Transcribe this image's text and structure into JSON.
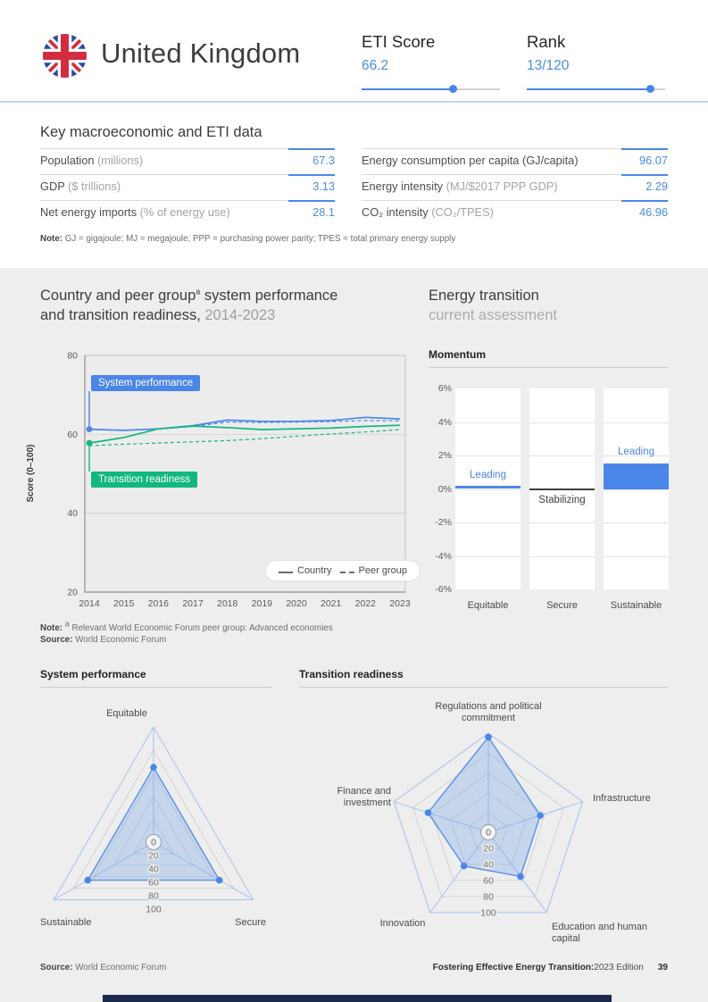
{
  "header": {
    "country": "United Kingdom",
    "flag": "uk-flag-icon",
    "eti": {
      "label": "ETI Score",
      "value": "66.2",
      "pct": 66.2
    },
    "rank": {
      "label": "Rank",
      "value": "13/120",
      "pct": 89.2
    }
  },
  "macro": {
    "title": "Key macroeconomic and ETI data",
    "rows_left": [
      {
        "label": "Population ",
        "unit": "(millions)",
        "value": "67.3"
      },
      {
        "label": "GDP ",
        "unit": "($ trillions)",
        "value": "3.13"
      },
      {
        "label": "Net energy imports ",
        "unit": "(% of energy use)",
        "value": "28.1"
      }
    ],
    "rows_right": [
      {
        "label": "Energy consumption per capita (GJ/capita)",
        "unit": "",
        "value": "96.07"
      },
      {
        "label": "Energy intensity ",
        "unit": "(MJ/$2017 PPP GDP)",
        "value": "2.29"
      },
      {
        "label": "CO₂ intensity ",
        "unit": "(CO₂/TPES)",
        "value": "46.96"
      }
    ],
    "note_prefix": "Note:",
    "note_text": " GJ = gigajoule; MJ = megajoule; PPP = purchasing power parity; TPES = total primary energy supply"
  },
  "trend_section": {
    "title_1a": "Country and peer group",
    "title_sup": "a",
    "title_1b": " system performance",
    "title_2a": "and transition readiness, ",
    "title_period": "2014-2023",
    "note_prefix": "Note: ",
    "note_sup": "a",
    "note_text": " Relevant World Economic Forum peer group: Advanced economies",
    "source_prefix": "Source:",
    "source_text": " World Economic Forum"
  },
  "assessment_section": {
    "title": "Energy transition",
    "subtitle": "current assessment",
    "momentum_label": "Momentum"
  },
  "radar_section": {
    "left_title": "System performance",
    "right_title": "Transition readiness"
  },
  "footer": {
    "source_prefix": "Source:",
    "source_text": " World Economic Forum",
    "report_title": "Fostering Effective Energy Transition:",
    "report_edition": " 2023 Edition",
    "page_number": "39"
  },
  "colors": {
    "accent_blue": "#4a86e8",
    "accent_green": "#10b87e",
    "value_blue": "#4a8ee0",
    "stabilizing_gray": "#3f3f3f",
    "navy_bar": "#1b2a4a"
  },
  "chart_data": [
    {
      "id": "trend",
      "type": "line",
      "title": "Country and peer group (a) system performance and transition readiness, 2014-2023",
      "ylabel": "Score (0–100)",
      "x": [
        2014,
        2015,
        2016,
        2017,
        2018,
        2019,
        2020,
        2021,
        2022,
        2023
      ],
      "ylim": [
        20,
        80
      ],
      "yticks": [
        20,
        40,
        60,
        80
      ],
      "grid": "horizontal",
      "legend": {
        "position": "bottom-right",
        "items": [
          "Country",
          "Peer group"
        ]
      },
      "series": [
        {
          "name": "System performance — Country",
          "style": "solid",
          "color": "#4a86e8",
          "values": [
            61.3,
            61.0,
            61.4,
            62.2,
            63.6,
            63.3,
            63.3,
            63.5,
            64.3,
            63.9
          ]
        },
        {
          "name": "System performance — Peer group",
          "style": "dashed",
          "color": "#4a86e8",
          "values": [
            61.2,
            61.0,
            61.3,
            62.0,
            63.1,
            63.0,
            63.1,
            63.2,
            63.5,
            63.4
          ]
        },
        {
          "name": "Transition readiness — Country",
          "style": "solid",
          "color": "#10b87e",
          "values": [
            57.8,
            59.2,
            61.4,
            62.1,
            61.7,
            61.2,
            61.4,
            61.6,
            62.0,
            62.3
          ]
        },
        {
          "name": "Transition readiness — Peer group",
          "style": "dashed",
          "color": "#10b87e",
          "values": [
            57.1,
            57.5,
            57.8,
            58.1,
            58.4,
            58.9,
            59.5,
            60.1,
            60.6,
            61.2
          ]
        }
      ],
      "annotations": [
        {
          "label": "System performance",
          "series": 0
        },
        {
          "label": "Transition readiness",
          "series": 2
        }
      ]
    },
    {
      "id": "momentum",
      "type": "bar",
      "title": "Momentum",
      "categories": [
        "Equitable",
        "Secure",
        "Sustainable"
      ],
      "values": [
        0.1,
        0.0,
        1.5
      ],
      "labels": [
        "Leading",
        "Stabilizing",
        "Leading"
      ],
      "label_colors": [
        "#4a86e8",
        "#3f3f3f",
        "#4a86e8"
      ],
      "ylim": [
        -6,
        6
      ],
      "ytick_labels": [
        "6%",
        "4%",
        "2%",
        "0%",
        "-2%",
        "-4%",
        "-6%"
      ]
    },
    {
      "id": "radar_system",
      "type": "radar",
      "title": "System performance",
      "axes": [
        "Equitable",
        "Secure",
        "Sustainable"
      ],
      "values": [
        65,
        66,
        66
      ],
      "scale_ticks": [
        0,
        20,
        40,
        60,
        80,
        100
      ]
    },
    {
      "id": "radar_readiness",
      "type": "radar",
      "title": "Transition readiness",
      "axes": [
        "Regulations and political commitment",
        "Infrastructure",
        "Education and human capital",
        "Innovation",
        "Finance and investment"
      ],
      "values": [
        96,
        55,
        55,
        42,
        64
      ],
      "scale_ticks": [
        0,
        20,
        40,
        60,
        80,
        100
      ]
    }
  ]
}
